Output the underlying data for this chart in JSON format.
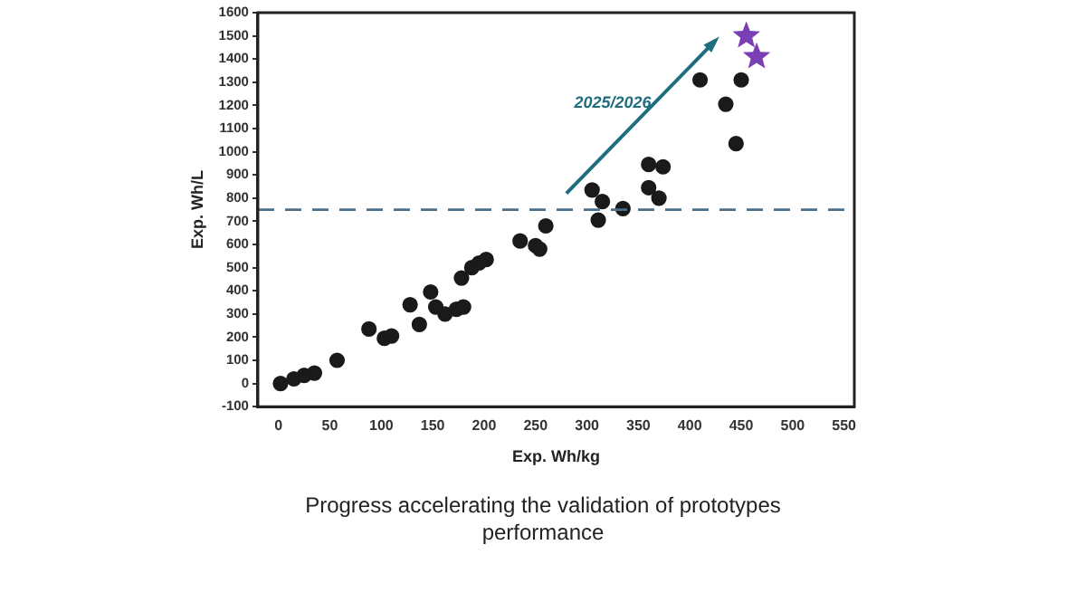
{
  "chart_data": {
    "type": "scatter",
    "xlabel": "Exp. Wh/kg",
    "ylabel": "Exp. Wh/L",
    "xlim": [
      -20,
      560
    ],
    "xticks": [
      0,
      50,
      100,
      150,
      200,
      250,
      300,
      350,
      400,
      450,
      500,
      550
    ],
    "ylim": [
      -100,
      1600
    ],
    "yticks": [
      -100,
      0,
      100,
      200,
      300,
      400,
      500,
      600,
      700,
      800,
      900,
      1000,
      1100,
      1200,
      1300,
      1400,
      1500,
      1600
    ],
    "grid": false,
    "legend": false,
    "series": [
      {
        "color": "#1a1a1a",
        "marker": "circle",
        "x": [
          2,
          15,
          25,
          35,
          57,
          88,
          103,
          110,
          128,
          137,
          148,
          153,
          162,
          173,
          180,
          178,
          188,
          195,
          202,
          235,
          250,
          254,
          260,
          305,
          311,
          315,
          335,
          360,
          360,
          370,
          374,
          410,
          435,
          445,
          450
        ],
        "values": [
          0,
          20,
          35,
          45,
          100,
          235,
          195,
          205,
          340,
          255,
          395,
          330,
          300,
          320,
          330,
          455,
          500,
          520,
          535,
          615,
          595,
          580,
          680,
          835,
          705,
          785,
          755,
          945,
          845,
          800,
          935,
          1310,
          1205,
          1035,
          1310
        ]
      },
      {
        "color": "#7b3fb5",
        "marker": "star",
        "x": [
          455,
          465
        ],
        "values": [
          1500,
          1410
        ]
      }
    ],
    "ref_lines": [
      {
        "axis": "y",
        "value": 750,
        "color": "#4a6f8a",
        "line_style": "dashed"
      }
    ],
    "annotations": [
      "2025/2026",
      "Progress accelerating the validation of prototypes performance"
    ]
  }
}
